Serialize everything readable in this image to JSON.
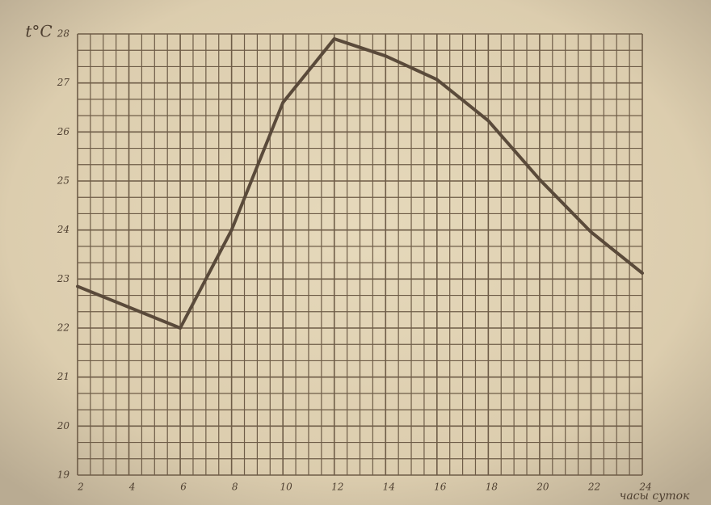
{
  "chart_data": {
    "type": "line",
    "y_label": "t°C",
    "x_label": "часы суток",
    "x": [
      2,
      6,
      8,
      10,
      12,
      14,
      16,
      18,
      20,
      22,
      24
    ],
    "series": [
      {
        "color": "#5a4a3a",
        "values": [
          22.85,
          22.0,
          24.0,
          26.6,
          27.9,
          27.55,
          27.07,
          26.23,
          25.03,
          23.96,
          23.12
        ]
      }
    ],
    "xlim": [
      2,
      24
    ],
    "xticks": [
      2,
      4,
      6,
      8,
      10,
      12,
      14,
      16,
      18,
      20,
      22,
      24
    ],
    "ylim": [
      19,
      28
    ],
    "yticks": [
      19,
      20,
      21,
      22,
      23,
      24,
      25,
      26,
      27,
      28
    ],
    "grid": true
  }
}
